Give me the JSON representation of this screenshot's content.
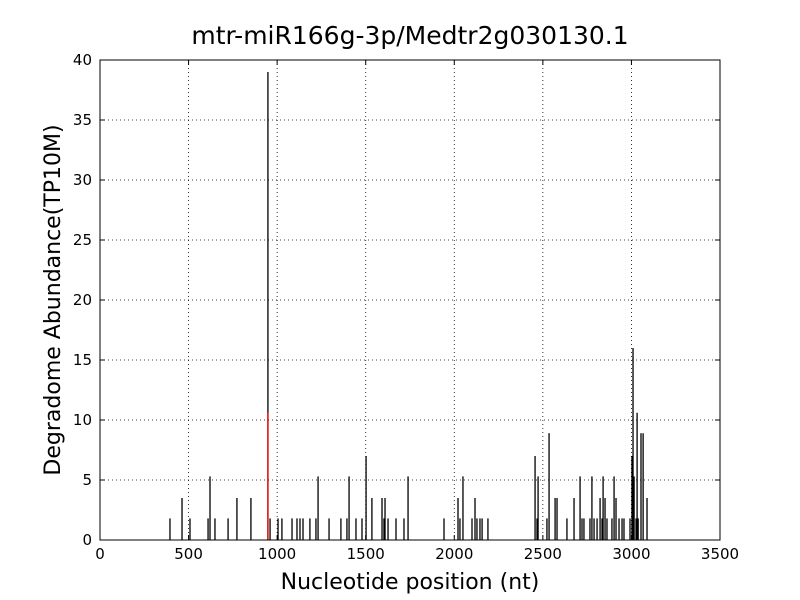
{
  "chart_data": {
    "type": "vlines",
    "title": "mtr-miR166g-3p/Medtr2g030130.1",
    "x_label": "Nucleotide position (nt)",
    "y_label": "Degradome Abundance(TP10M)",
    "xlim": [
      0,
      3500
    ],
    "xticks": [
      0,
      500,
      1000,
      1500,
      2000,
      2500,
      3000,
      3500
    ],
    "ylim": [
      0,
      40
    ],
    "yticks": [
      0,
      5,
      10,
      15,
      20,
      25,
      30,
      35,
      40
    ],
    "grid": true,
    "series": [
      {
        "color": "#000000",
        "x": [
          395,
          463,
          508,
          610,
          621,
          649,
          723,
          773,
          852,
          948,
          960,
          1005,
          1027,
          1084,
          1112,
          1129,
          1146,
          1185,
          1219,
          1231,
          1293,
          1360,
          1394,
          1406,
          1445,
          1479,
          1502,
          1535,
          1592,
          1603,
          1609,
          1626,
          1671,
          1716,
          1739,
          1942,
          2021,
          2032,
          2049,
          2100,
          2117,
          2128,
          2145,
          2157,
          2190,
          2456,
          2467,
          2473,
          2523,
          2535,
          2569,
          2580,
          2636,
          2676,
          2710,
          2721,
          2732,
          2766,
          2777,
          2789,
          2806,
          2823,
          2834,
          2840,
          2851,
          2862,
          2890,
          2902,
          2913,
          2930,
          2947,
          2958,
          2992,
          3003,
          3009,
          3015,
          3026,
          3032,
          3038,
          3054,
          3066,
          3088
        ],
        "values": [
          1.8,
          3.5,
          1.8,
          1.8,
          5.3,
          1.8,
          1.8,
          3.5,
          3.5,
          39,
          1.8,
          1.8,
          1.8,
          1.8,
          1.8,
          1.8,
          1.8,
          1.8,
          1.8,
          5.3,
          1.8,
          1.8,
          1.8,
          5.3,
          1.8,
          1.8,
          7,
          3.5,
          3.5,
          1.8,
          3.5,
          1.8,
          1.8,
          1.8,
          5.3,
          1.8,
          3.5,
          1.8,
          5.3,
          1.8,
          3.5,
          1.8,
          1.8,
          1.8,
          1.8,
          7,
          1.8,
          5.3,
          1.8,
          8.9,
          3.5,
          3.5,
          1.8,
          3.5,
          5.3,
          1.8,
          1.8,
          1.8,
          5.3,
          1.8,
          1.8,
          3.5,
          1.8,
          5.3,
          3.5,
          1.8,
          1.8,
          5.3,
          3.5,
          1.8,
          1.8,
          1.8,
          1.8,
          7,
          16,
          5.3,
          1.8,
          10.6,
          1.8,
          8.9,
          8.9,
          3.5
        ]
      },
      {
        "color": "#ff0000",
        "x": [
          948
        ],
        "values": [
          10.6
        ]
      }
    ]
  }
}
